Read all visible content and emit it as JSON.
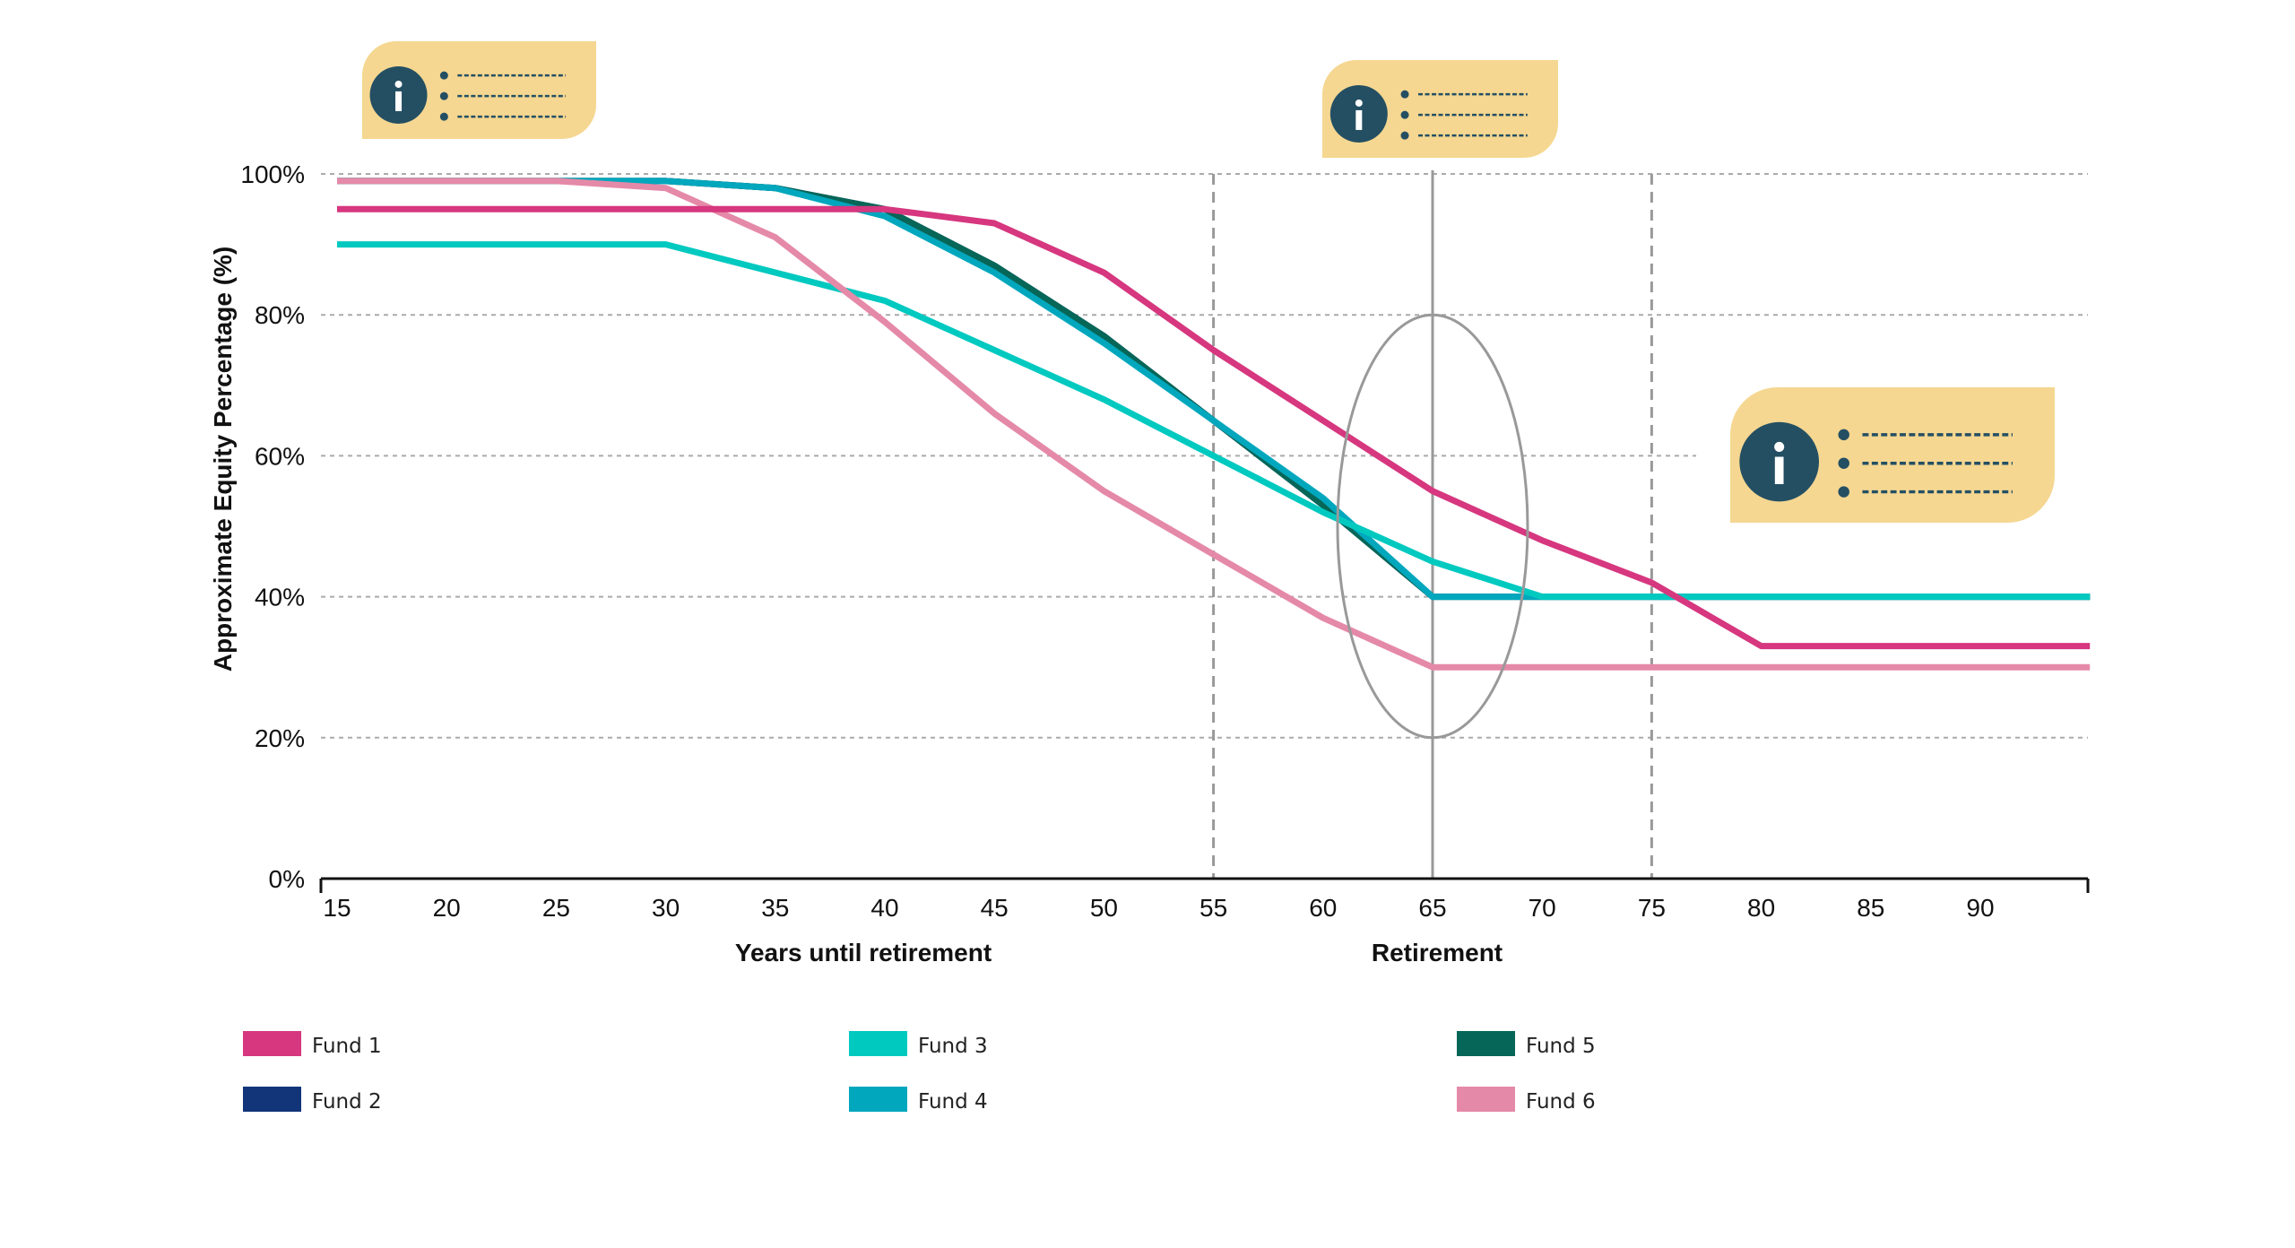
{
  "chart_data": {
    "type": "line",
    "title": "",
    "xlabel": "Years until retirement",
    "xlabel_secondary": "Retirement",
    "ylabel": "Approximate Equity Percentage (%)",
    "xlim": [
      15,
      95
    ],
    "ylim": [
      0,
      100
    ],
    "x_ticks": [
      "15",
      "20",
      "25",
      "30",
      "35",
      "40",
      "45",
      "50",
      "55",
      "60",
      "65",
      "70",
      "75",
      "80",
      "85",
      "90"
    ],
    "y_ticks": [
      "0%",
      "20%",
      "40%",
      "60%",
      "80%",
      "100%"
    ],
    "grid": "horizontal dotted",
    "legend_position": "bottom",
    "reference_lines": {
      "dashed_x": [
        55,
        75
      ],
      "solid_x": 65,
      "ellipse": {
        "center_x": 65,
        "y_range": [
          20,
          80
        ]
      }
    },
    "series": [
      {
        "name": "Fund 2",
        "color": "#12357A",
        "x": [
          15,
          30,
          35,
          40,
          45,
          50,
          55,
          60,
          65,
          95
        ],
        "y": [
          99,
          99,
          98,
          95,
          87,
          77,
          65,
          53,
          40,
          40
        ]
      },
      {
        "name": "Fund 5",
        "color": "#066657",
        "x": [
          15,
          30,
          35,
          40,
          45,
          50,
          55,
          60,
          65,
          95
        ],
        "y": [
          99,
          99,
          98,
          95,
          87,
          77,
          65,
          53,
          40,
          40
        ]
      },
      {
        "name": "Fund 4",
        "color": "#00A7BD",
        "x": [
          15,
          30,
          35,
          40,
          45,
          50,
          55,
          60,
          65,
          95
        ],
        "y": [
          99,
          99,
          98,
          94,
          86,
          76,
          65,
          54,
          40,
          40
        ]
      },
      {
        "name": "Fund 3",
        "color": "#00C9C0",
        "x": [
          15,
          30,
          35,
          40,
          45,
          50,
          55,
          60,
          65,
          70,
          95
        ],
        "y": [
          90,
          90,
          86,
          82,
          75,
          68,
          60,
          52,
          45,
          40,
          40
        ]
      },
      {
        "name": "Fund 6",
        "color": "#E589A8",
        "x": [
          15,
          25,
          30,
          35,
          40,
          45,
          50,
          55,
          60,
          65,
          95
        ],
        "y": [
          99,
          99,
          98,
          91,
          79,
          66,
          55,
          46,
          37,
          30,
          30
        ]
      },
      {
        "name": "Fund 1",
        "color": "#D6377F",
        "x": [
          15,
          40,
          45,
          50,
          55,
          60,
          65,
          70,
          75,
          80,
          95
        ],
        "y": [
          95,
          95,
          93,
          86,
          75,
          65,
          55,
          48,
          42,
          33,
          33
        ]
      }
    ],
    "legend": [
      "Fund 1",
      "Fund 2",
      "Fund 3",
      "Fund 4",
      "Fund 5",
      "Fund 6"
    ]
  },
  "callouts": [
    {
      "icon": "info-icon",
      "bullets": 3
    },
    {
      "icon": "info-icon",
      "bullets": 3
    },
    {
      "icon": "info-icon",
      "bullets": 3
    }
  ],
  "colors": {
    "callout_bg": "#F5D791",
    "callout_icon": "#244F63",
    "grid": "#AAAAAA",
    "reference": "#999999"
  }
}
